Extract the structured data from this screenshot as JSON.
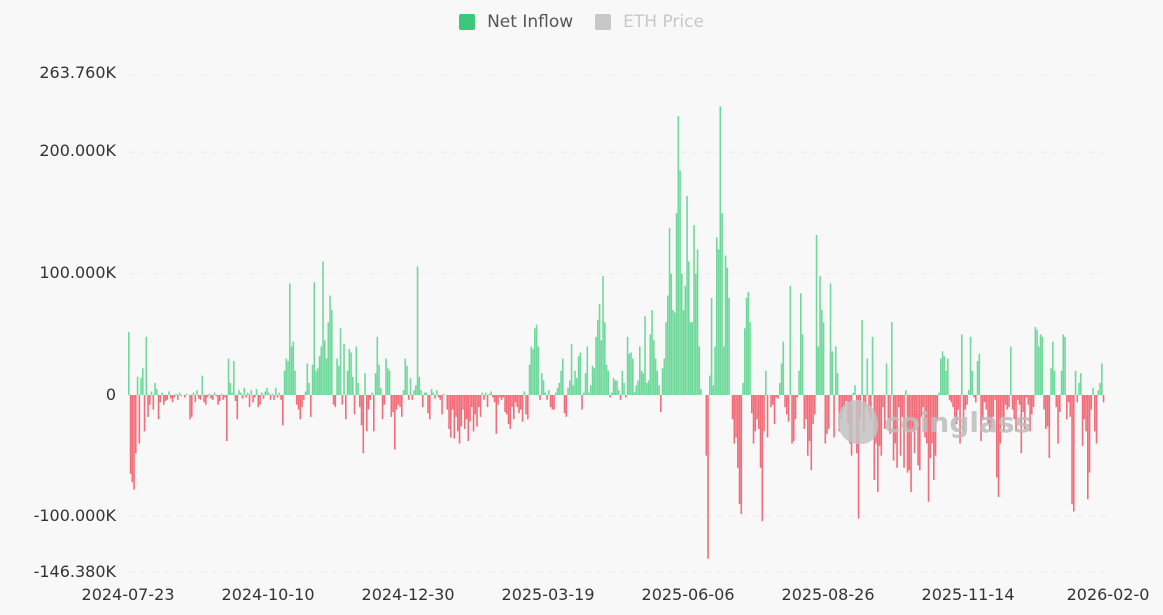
{
  "legend": [
    {
      "label": "Net Inflow",
      "color": "#3dc77a",
      "active": true
    },
    {
      "label": "ETH Price",
      "color": "#c8c8c8",
      "active": false
    }
  ],
  "watermark": "coinglass",
  "colors": {
    "positive": "#6fd99b",
    "negative": "#f26d7a",
    "grid": "#ececec",
    "background": "#f8f8f8"
  },
  "chart_data": {
    "type": "bar",
    "title": "",
    "series_name": "Net Inflow",
    "xlabel": "",
    "ylabel": "",
    "ylim": [
      -146.38,
      263.76
    ],
    "y_unit": "K",
    "y_ticks": [
      "263.760K",
      "200.000K",
      "100.000K",
      "0",
      "-100.000K",
      "-146.380K"
    ],
    "x_ticks": [
      "2024-07-23",
      "2024-10-10",
      "2024-12-30",
      "2025-03-19",
      "2025-06-06",
      "2025-08-26",
      "2025-11-14",
      "2026-02-0"
    ],
    "grid": true,
    "legend_position": "top",
    "start_date": "2024-07-23",
    "interval_days": 1,
    "values_k": [
      52,
      -65,
      -72,
      -78,
      -48,
      15,
      -40,
      14,
      22,
      -30,
      48,
      -18,
      -8,
      3,
      -12,
      10,
      5,
      -20,
      -6,
      2,
      -8,
      -5,
      -4,
      3,
      -3,
      -6,
      -2,
      1,
      -4,
      2,
      -1,
      0,
      -2,
      1,
      0,
      -20,
      -18,
      2,
      -6,
      4,
      -3,
      -4,
      16,
      -6,
      -8,
      -2,
      1,
      -3,
      -4,
      2,
      -1,
      -8,
      -5,
      1,
      -4,
      -2,
      -38,
      30,
      10,
      2,
      28,
      -5,
      -20,
      4,
      2,
      -3,
      6,
      -2,
      2,
      -10,
      4,
      -6,
      -2,
      5,
      -10,
      -8,
      2,
      -3,
      3,
      6,
      2,
      -4,
      1,
      -4,
      6,
      -2,
      2,
      -4,
      -25,
      20,
      30,
      28,
      92,
      40,
      44,
      20,
      -8,
      -12,
      -20,
      -10,
      -4,
      3,
      26,
      10,
      -18,
      25,
      93,
      20,
      22,
      32,
      40,
      110,
      45,
      30,
      60,
      82,
      70,
      -8,
      -10,
      30,
      24,
      55,
      -8,
      42,
      -20,
      20,
      38,
      35,
      15,
      -16,
      40,
      10,
      -10,
      -25,
      -48,
      18,
      -30,
      -12,
      -4,
      2,
      -30,
      18,
      48,
      25,
      6,
      -20,
      -8,
      30,
      22,
      20,
      -18,
      -14,
      -45,
      -12,
      -8,
      -10,
      -18,
      4,
      30,
      24,
      -4,
      14,
      -4,
      4,
      8,
      106,
      15,
      4,
      -10,
      2,
      2,
      -15,
      -20,
      5,
      2,
      -3,
      4,
      -2,
      -4,
      -16,
      1,
      0,
      -12,
      -28,
      -35,
      -12,
      -36,
      -18,
      -30,
      -40,
      -26,
      -12,
      -28,
      -20,
      -38,
      -22,
      -10,
      -30,
      -16,
      -26,
      -10,
      -18,
      2,
      -4,
      2,
      -10,
      1,
      3,
      -2,
      -6,
      -32,
      -8,
      -2,
      -4,
      -2,
      -14,
      -16,
      -24,
      -28,
      -10,
      -20,
      -6,
      -10,
      -15,
      -12,
      -22,
      3,
      -16,
      -20,
      25,
      40,
      38,
      55,
      58,
      40,
      -4,
      18,
      12,
      2,
      -4,
      4,
      -10,
      -12,
      -12,
      2,
      6,
      10,
      20,
      30,
      -15,
      -18,
      6,
      12,
      42,
      8,
      20,
      14,
      32,
      35,
      -12,
      2,
      18,
      40,
      2,
      8,
      24,
      22,
      48,
      62,
      75,
      45,
      98,
      60,
      25,
      20,
      -2,
      2,
      14,
      12,
      12,
      4,
      -4,
      20,
      10,
      -2,
      48,
      34,
      35,
      30,
      2,
      8,
      12,
      40,
      20,
      18,
      65,
      10,
      12,
      50,
      70,
      45,
      30,
      20,
      8,
      -14,
      22,
      30,
      60,
      82,
      138,
      100,
      70,
      68,
      150,
      230,
      185,
      100,
      70,
      90,
      164,
      110,
      60,
      60,
      140,
      100,
      120,
      40,
      5,
      0,
      0,
      -50,
      -135,
      16,
      80,
      8,
      40,
      130,
      120,
      238,
      150,
      40,
      115,
      105,
      80,
      0,
      -20,
      -40,
      -35,
      -60,
      -90,
      -98,
      10,
      55,
      80,
      85,
      60,
      -15,
      -40,
      -30,
      -20,
      -28,
      -60,
      -104,
      -30,
      20,
      -35,
      0,
      -10,
      -8,
      -24,
      -2,
      -3,
      10,
      26,
      44,
      -10,
      -16,
      -22,
      90,
      -40,
      -38,
      -20,
      -2,
      20,
      84,
      50,
      -28,
      -20,
      -50,
      -38,
      -62,
      -24,
      -16,
      132,
      40,
      98,
      70,
      60,
      -40,
      -32,
      -28,
      92,
      36,
      -35,
      40,
      18,
      -30,
      -20,
      -14,
      -10,
      -5,
      -24,
      -40,
      -50,
      2,
      8,
      -48,
      -102,
      -20,
      62,
      -30,
      -10,
      30,
      -15,
      -20,
      48,
      -70,
      -40,
      -80,
      -42,
      -50,
      -10,
      -28,
      26,
      -20,
      -32,
      60,
      -54,
      -40,
      -60,
      -10,
      -50,
      -18,
      -60,
      4,
      -64,
      -62,
      -80,
      -30,
      -48,
      -20,
      -58,
      -62,
      -18,
      -10,
      -35,
      -40,
      -88,
      -52,
      -40,
      -70,
      -50,
      -20,
      2,
      30,
      36,
      32,
      20,
      30,
      -4,
      -6,
      -10,
      -18,
      -24,
      -12,
      -40,
      50,
      -30,
      -12,
      -8,
      4,
      48,
      20,
      -2,
      -6,
      28,
      34,
      -38,
      -20,
      -6,
      -12,
      -24,
      -30,
      -26,
      -18,
      -4,
      -68,
      -84,
      -40,
      -18,
      -30,
      -8,
      -12,
      -10,
      40,
      -12,
      -20,
      -30,
      -4,
      -8,
      -48,
      -14,
      -28,
      -2,
      -8,
      -30,
      -16,
      -10,
      56,
      54,
      40,
      50,
      48,
      -12,
      -28,
      -26,
      -52,
      22,
      44,
      20,
      -10,
      -40,
      -14,
      20,
      50,
      48,
      -20,
      -6,
      -18,
      -90,
      -96,
      20,
      -6,
      10,
      18,
      -42,
      -20,
      -30,
      -86,
      -64,
      -12,
      6,
      -30,
      -40,
      4,
      10,
      26,
      -6
    ]
  }
}
